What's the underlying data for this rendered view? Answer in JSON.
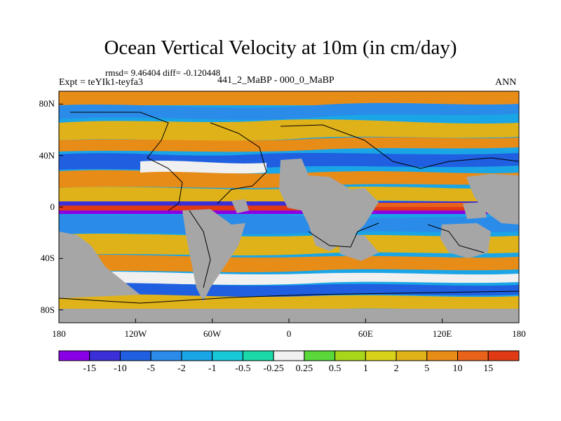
{
  "title": "Ocean Vertical Velocity at 10m (in cm/day)",
  "stats_text": "rmsd= 9.46404 diff= -0.120448",
  "experiment_label": "Expt = teYIk1-teyfa3",
  "subtitle": "441_2_MaBP - 000_0_MaBP",
  "season": "ANN",
  "map": {
    "lon_ticks": [
      "180",
      "120W",
      "60W",
      "0",
      "60E",
      "120E",
      "180"
    ],
    "lat_ticks": [
      "80N",
      "40N",
      "0",
      "40S",
      "80S"
    ],
    "land_color": "#a6a6a6"
  },
  "colorbar": {
    "colors": [
      "#8a00e6",
      "#3b2fd8",
      "#1f5fe0",
      "#2a8ce8",
      "#1aa5e6",
      "#18c8d8",
      "#1ad8a8",
      "#f0f0f0",
      "#5ad83a",
      "#a8d61a",
      "#d8d21a",
      "#e0b21a",
      "#e88c18",
      "#e8621a",
      "#e03a14"
    ],
    "labels": [
      "-15",
      "-10",
      "-5",
      "-2",
      "-1",
      "-0.5",
      "-0.25",
      "0.25",
      "0.5",
      "1",
      "2",
      "5",
      "10",
      "15"
    ]
  }
}
